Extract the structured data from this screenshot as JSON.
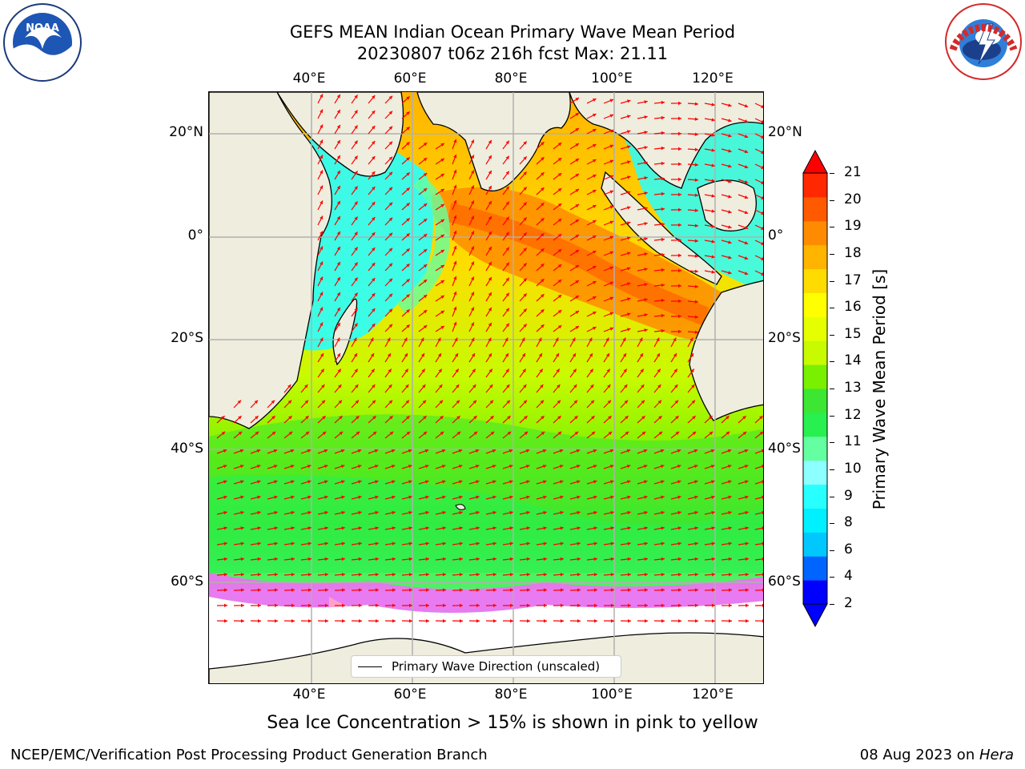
{
  "header": {
    "title_line1": "GEFS MEAN Indian Ocean Primary Wave Mean Period",
    "title_line2": "20230807 t06z 216h fcst   Max: 21.11"
  },
  "logos": {
    "left": "NOAA",
    "right": "NATIONAL WEATHER SERVICE"
  },
  "map": {
    "lon_labels_top": [
      "40°E",
      "60°E",
      "80°E",
      "100°E",
      "120°E"
    ],
    "lon_labels_bottom": [
      "40°E",
      "60°E",
      "80°E",
      "100°E",
      "120°E"
    ],
    "lat_labels_left": [
      "20°N",
      "0°",
      "20°S",
      "40°S",
      "60°S"
    ],
    "lat_labels_right": [
      "20°N",
      "0°",
      "20°S",
      "40°S",
      "60°S"
    ],
    "legend_entry": "Primary Wave Direction (unscaled)",
    "land_color": "#efedde",
    "arrow_color": "#ff0000",
    "grid": true
  },
  "colorbar": {
    "label": "Primary Wave Mean Period [s]",
    "ticks": [
      "2",
      "4",
      "6",
      "8",
      "9",
      "10",
      "11",
      "12",
      "13",
      "14",
      "15",
      "16",
      "17",
      "18",
      "19",
      "20",
      "21"
    ],
    "colors": [
      "#0000ff",
      "#0064ff",
      "#00c8ff",
      "#00f0ff",
      "#28ffff",
      "#8cffff",
      "#64ffa0",
      "#28f050",
      "#3ce632",
      "#78f000",
      "#c8fa00",
      "#e6ff00",
      "#ffff00",
      "#ffdc00",
      "#ffb400",
      "#ff8c00",
      "#ff5a00",
      "#ff2800"
    ],
    "extend_under": "#0000ff",
    "extend_over": "#ff0000"
  },
  "footer": {
    "subtitle": "Sea Ice Concentration > 15% is shown in pink to yellow",
    "credit": "NCEP/EMC/Verification Post Processing Product Generation Branch",
    "date_prefix": "08 Aug 2023 on ",
    "machine": "Hera"
  }
}
